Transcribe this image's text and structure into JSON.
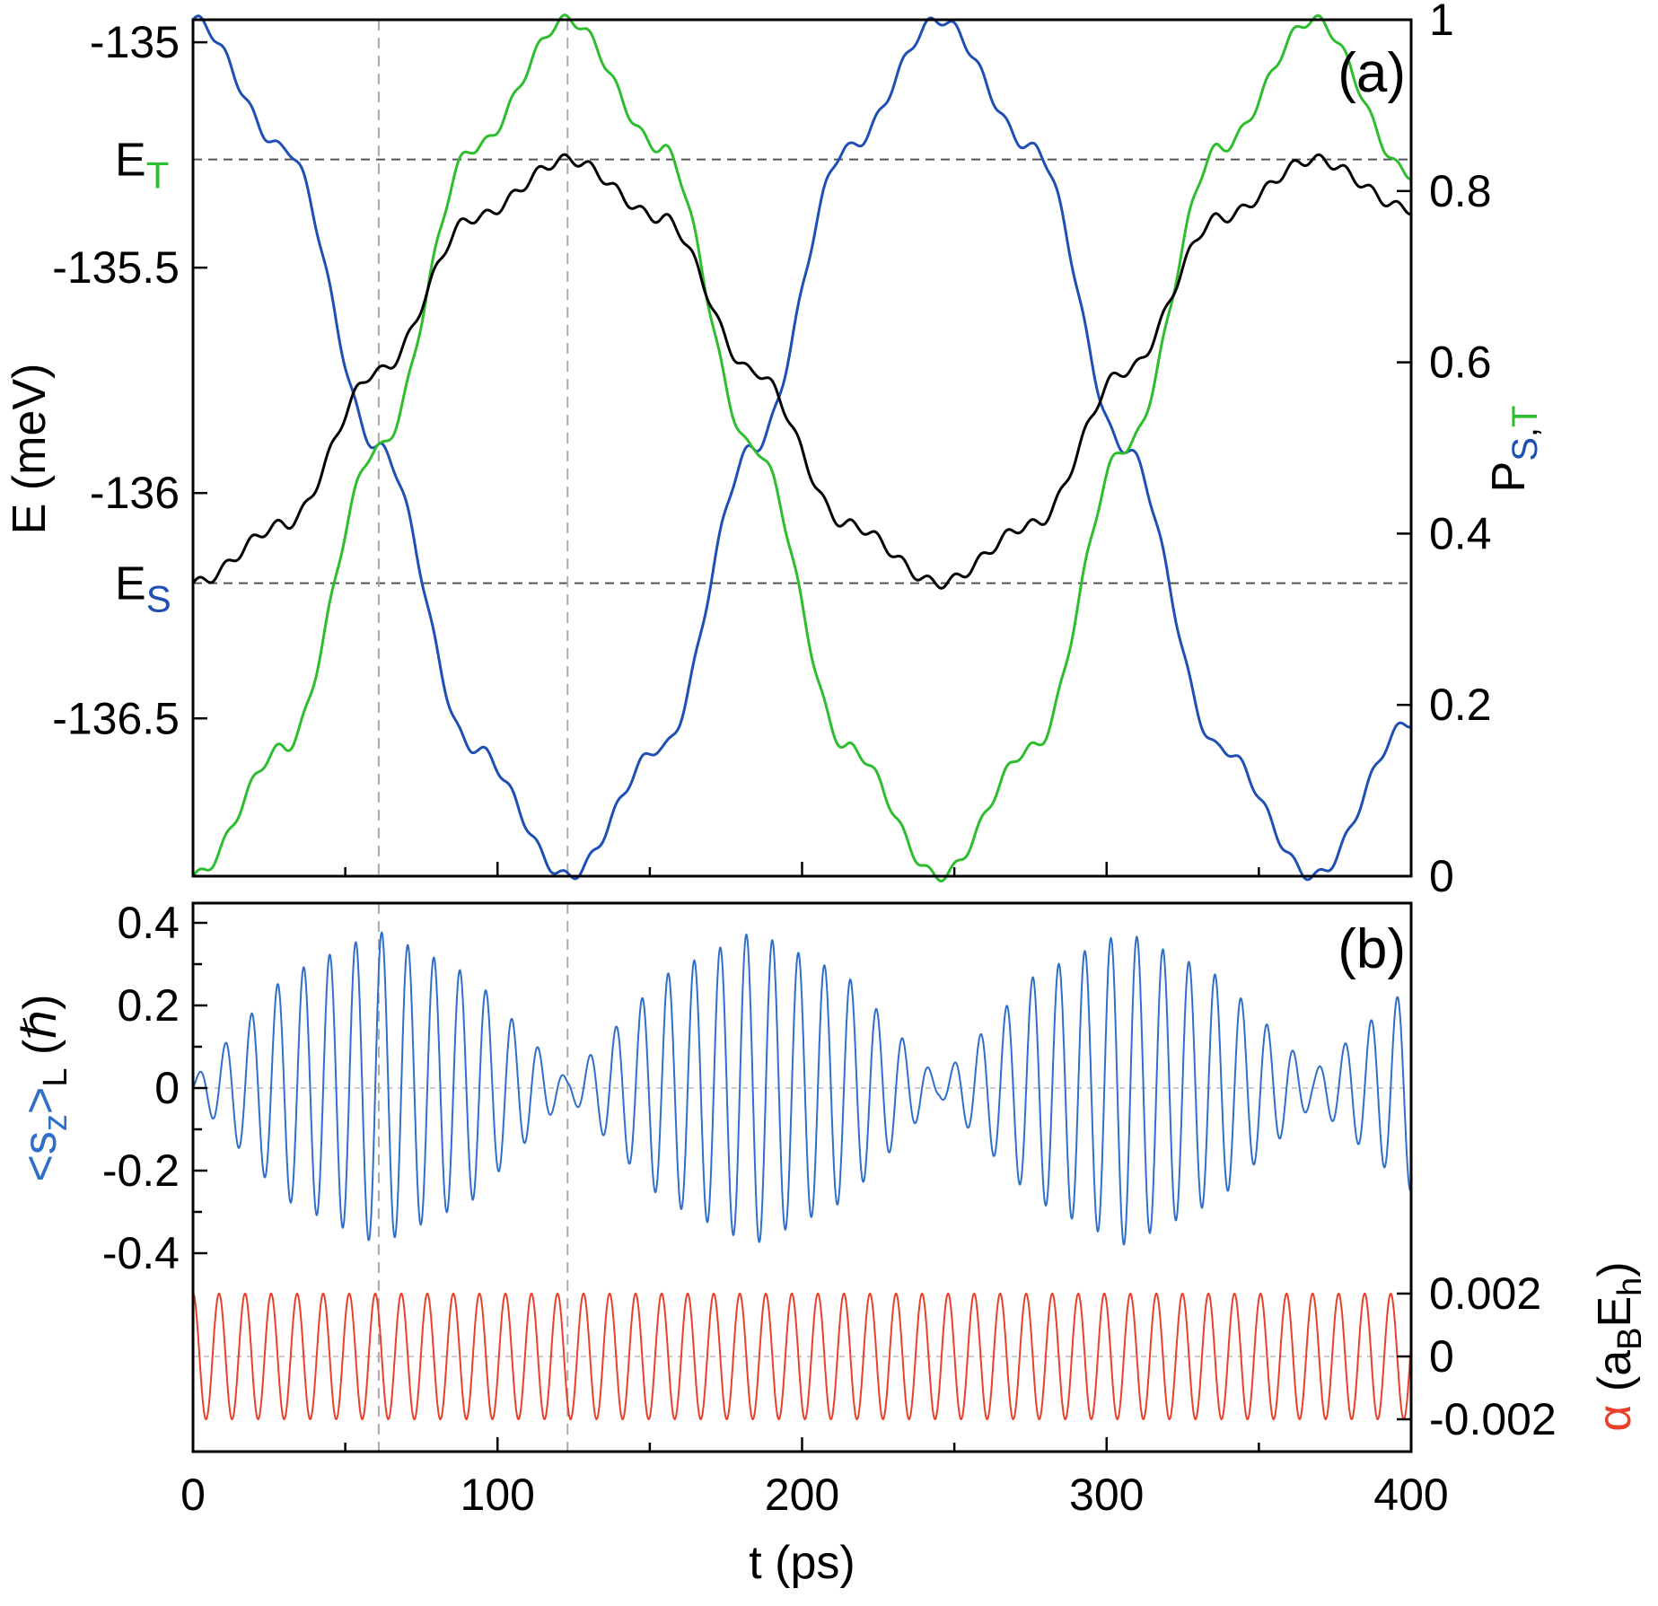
{
  "colors": {
    "singlet": "#1f4fb5",
    "triplet": "#2dbd2d",
    "energy": "#000000",
    "spin": "#2f6fca",
    "alpha": "#e8402a"
  },
  "chart_data": [
    {
      "panel": "(a)",
      "type": "line",
      "xlabel": "",
      "ylabel_left": "E (meV)",
      "ylabel_right_parts": [
        "P",
        "S",
        ",",
        "T"
      ],
      "xlim": [
        0,
        400
      ],
      "ylim_left": [
        -136.85,
        -134.95
      ],
      "ylim_right": [
        0,
        1
      ],
      "left_ticks": [
        {
          "value": -135,
          "label": "-135"
        },
        {
          "value": -135.5,
          "label": "-135.5"
        },
        {
          "value": -136,
          "label": "-136"
        },
        {
          "value": -136.5,
          "label": "-136.5"
        }
      ],
      "right_ticks": [
        {
          "value": 1,
          "label": "1"
        },
        {
          "value": 0.8,
          "label": "0.8"
        },
        {
          "value": 0.6,
          "label": "0.6"
        },
        {
          "value": 0.4,
          "label": "0.4"
        },
        {
          "value": 0.2,
          "label": "0.2"
        },
        {
          "value": 0,
          "label": "0"
        }
      ],
      "reference_levels": [
        {
          "label": "E",
          "sub": "T",
          "value": -135.26,
          "color_key": "triplet"
        },
        {
          "label": "E",
          "sub": "S",
          "value": -136.2,
          "color_key": "singlet"
        }
      ],
      "vertical_guides": [
        61,
        123
      ],
      "series": [
        {
          "key": "P_S",
          "axis": "right",
          "color_key": "singlet",
          "x": [
            0,
            30,
            61,
            92,
            123,
            154,
            184,
            215,
            245,
            276,
            306,
            337,
            368,
            400
          ],
          "y": [
            1.0,
            0.85,
            0.5,
            0.15,
            0.0,
            0.15,
            0.5,
            0.85,
            1.0,
            0.85,
            0.5,
            0.15,
            0.0,
            0.18
          ]
        },
        {
          "key": "P_T",
          "axis": "right",
          "color_key": "triplet",
          "x": [
            0,
            30,
            61,
            92,
            123,
            154,
            184,
            215,
            245,
            276,
            306,
            337,
            368,
            400
          ],
          "y": [
            0.0,
            0.15,
            0.5,
            0.85,
            1.0,
            0.85,
            0.5,
            0.15,
            0.0,
            0.15,
            0.5,
            0.85,
            1.0,
            0.82
          ]
        },
        {
          "key": "E",
          "axis": "left",
          "color_key": "energy",
          "x": [
            0,
            30,
            61,
            92,
            123,
            154,
            184,
            215,
            245,
            276,
            306,
            337,
            368,
            400
          ],
          "y": [
            -136.2,
            -136.07,
            -135.73,
            -135.39,
            -135.26,
            -135.39,
            -135.73,
            -136.07,
            -136.2,
            -136.07,
            -135.73,
            -135.39,
            -135.26,
            -135.37
          ]
        }
      ]
    },
    {
      "panel": "(b)",
      "type": "line",
      "xlabel": "t (ps)",
      "xlim": [
        0,
        400
      ],
      "ylabel_left_parts": [
        "<s",
        "z",
        ">",
        "L",
        " (ℏ)"
      ],
      "ylabel_right_parts": [
        "α",
        " (a",
        "B",
        "E",
        "h",
        ")"
      ],
      "ylim_left": [
        -0.44,
        0.45
      ],
      "ylim_right": [
        -0.0027,
        0.0032
      ],
      "x_ticks": [
        {
          "value": 0,
          "label": "0"
        },
        {
          "value": 100,
          "label": "100"
        },
        {
          "value": 200,
          "label": "200"
        },
        {
          "value": 300,
          "label": "300"
        },
        {
          "value": 400,
          "label": "400"
        }
      ],
      "left_ticks": [
        {
          "value": 0.4,
          "label": "0.4"
        },
        {
          "value": 0.2,
          "label": "0.2"
        },
        {
          "value": 0,
          "label": "0"
        },
        {
          "value": -0.2,
          "label": "-0.2"
        },
        {
          "value": -0.4,
          "label": "-0.4"
        }
      ],
      "right_ticks": [
        {
          "value": 0.002,
          "label": "0.002"
        },
        {
          "value": 0,
          "label": "0"
        },
        {
          "value": -0.002,
          "label": "-0.002"
        }
      ],
      "vertical_guides": [
        61,
        123
      ],
      "series": [
        {
          "key": "sz_L",
          "axis": "left",
          "color_key": "spin",
          "oscillation_period_ps": 8.55,
          "envelope_x": [
            0,
            30,
            61,
            92,
            123,
            154,
            184,
            215,
            245,
            276,
            306,
            337,
            368,
            400
          ],
          "envelope_amplitude": [
            0.02,
            0.27,
            0.38,
            0.27,
            0.02,
            0.27,
            0.38,
            0.27,
            0.02,
            0.27,
            0.38,
            0.27,
            0.04,
            0.25
          ]
        },
        {
          "key": "alpha",
          "axis": "right",
          "color_key": "alpha",
          "amplitude": 0.002,
          "period_ps": 8.55
        }
      ]
    }
  ]
}
